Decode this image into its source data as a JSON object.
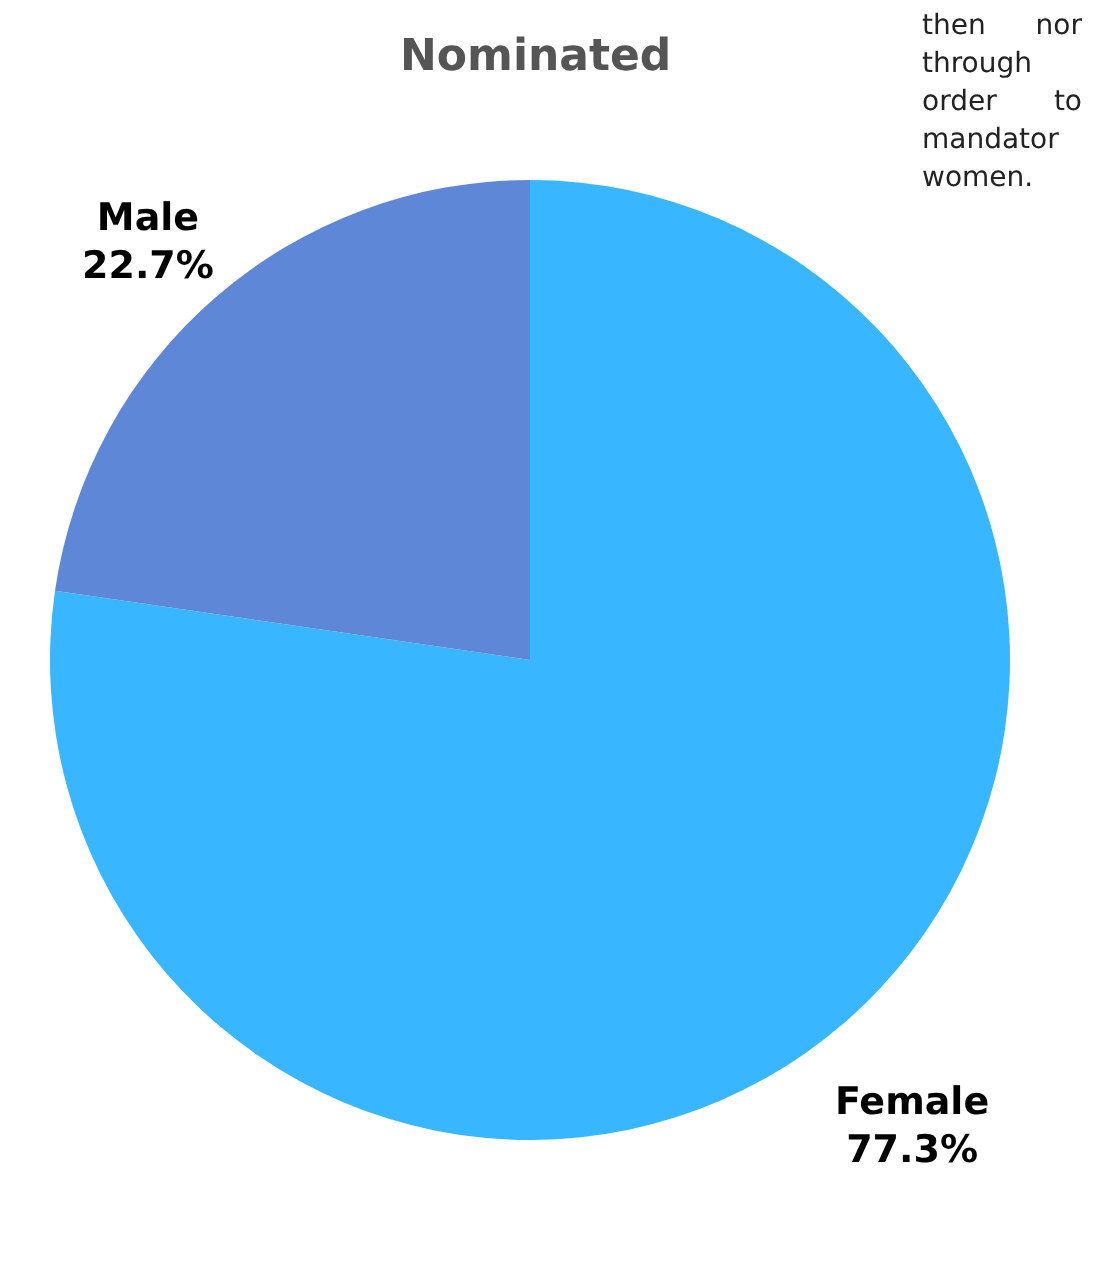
{
  "chart_data": {
    "type": "pie",
    "title": "Nominated",
    "categories": [
      "Female",
      "Male"
    ],
    "values": [
      77.3,
      22.7
    ],
    "colors": [
      "#38b6ff",
      "#5e87d8"
    ],
    "value_labels": [
      "77.3%",
      "22.7%"
    ],
    "legend": false,
    "annotations": [
      "then nor through order to mandator women."
    ]
  }
}
